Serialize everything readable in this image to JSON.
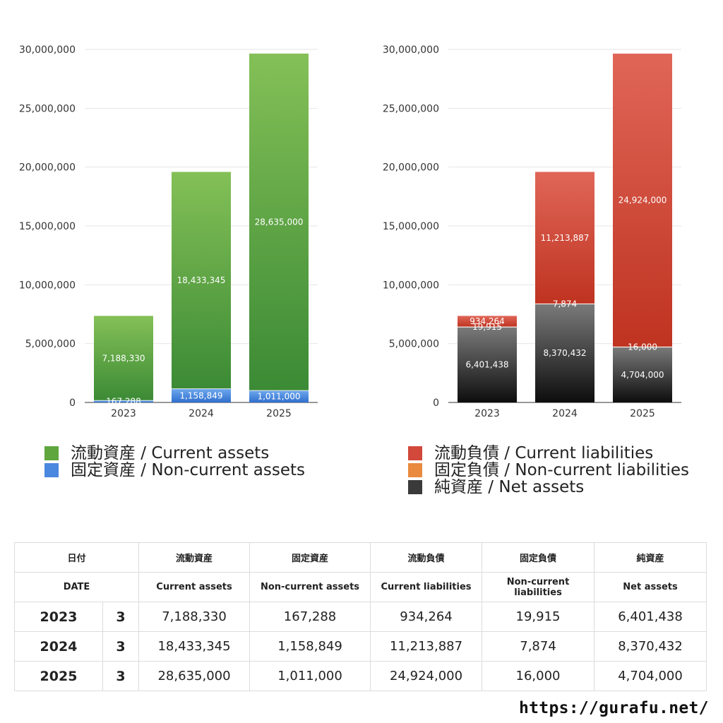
{
  "chart_data": [
    {
      "type": "bar",
      "stacked": true,
      "title": "",
      "categories": [
        "2023",
        "2024",
        "2025"
      ],
      "ylim": [
        0,
        30000000
      ],
      "yticks": [
        0,
        5000000,
        10000000,
        15000000,
        20000000,
        25000000,
        30000000
      ],
      "ytick_labels": [
        "0",
        "5,000,000",
        "10,000,000",
        "15,000,000",
        "20,000,000",
        "25,000,000",
        "30,000,000"
      ],
      "series": [
        {
          "name": "固定資産 / Non-current assets",
          "values": [
            167288,
            1158849,
            1011000
          ],
          "labels": [
            "167,288",
            "1,158,849",
            "1,011,000"
          ],
          "color_top": "#6fa8ef",
          "color_bottom": "#2f6fcd"
        },
        {
          "name": "流動資産 / Current assets",
          "values": [
            7188330,
            18433345,
            28635000
          ],
          "labels": [
            "7,188,330",
            "18,433,345",
            "28,635,000"
          ],
          "color_top": "#84c057",
          "color_bottom": "#3b8a35"
        }
      ]
    },
    {
      "type": "bar",
      "stacked": true,
      "title": "",
      "categories": [
        "2023",
        "2024",
        "2025"
      ],
      "ylim": [
        0,
        30000000
      ],
      "yticks": [
        0,
        5000000,
        10000000,
        15000000,
        20000000,
        25000000,
        30000000
      ],
      "ytick_labels": [
        "0",
        "5,000,000",
        "10,000,000",
        "15,000,000",
        "20,000,000",
        "25,000,000",
        "30,000,000"
      ],
      "series": [
        {
          "name": "純資産 / Net assets",
          "values": [
            6401438,
            8370432,
            4704000
          ],
          "labels": [
            "6,401,438",
            "8,370,432",
            "4,704,000"
          ],
          "color_top": "#7a7a7a",
          "color_bottom": "#0d0d0d"
        },
        {
          "name": "固定負債 / Non-current liabilities",
          "values": [
            19915,
            7874,
            16000
          ],
          "labels": [
            "19,915",
            "7,874",
            "16,000"
          ],
          "color_top": "#f0a058",
          "color_bottom": "#d9702a"
        },
        {
          "name": "流動負債 / Current liabilities",
          "values": [
            934264,
            11213887,
            24924000
          ],
          "labels": [
            "934,264",
            "11,213,887",
            "24,924,000"
          ],
          "color_top": "#e06658",
          "color_bottom": "#bf3320"
        }
      ]
    }
  ],
  "legend_left": [
    {
      "label": "流動資産 / Current assets",
      "color": "#5fa63e"
    },
    {
      "label": "固定資産 / Non-current assets",
      "color": "#4a87df"
    }
  ],
  "legend_right": [
    {
      "label": "流動負債 / Current liabilities",
      "color": "#d2483a"
    },
    {
      "label": "固定負債 / Non-current liabilities",
      "color": "#e98a3f"
    },
    {
      "label": "純資産 / Net assets",
      "color": "#3a3a3a"
    }
  ],
  "table": {
    "header_jp": [
      "日付",
      "",
      "流動資産",
      "固定資産",
      "流動負債",
      "固定負債",
      "純資産"
    ],
    "header_en": [
      "DATE",
      "",
      "Current assets",
      "Non-current assets",
      "Current liabilities",
      "Non-current liabilities",
      "Net assets"
    ],
    "rows": [
      [
        "2023",
        "3",
        "7,188,330",
        "167,288",
        "934,264",
        "19,915",
        "6,401,438"
      ],
      [
        "2024",
        "3",
        "18,433,345",
        "1,158,849",
        "11,213,887",
        "7,874",
        "8,370,432"
      ],
      [
        "2025",
        "3",
        "28,635,000",
        "1,011,000",
        "24,924,000",
        "16,000",
        "4,704,000"
      ]
    ]
  },
  "source": "https://gurafu.net/"
}
